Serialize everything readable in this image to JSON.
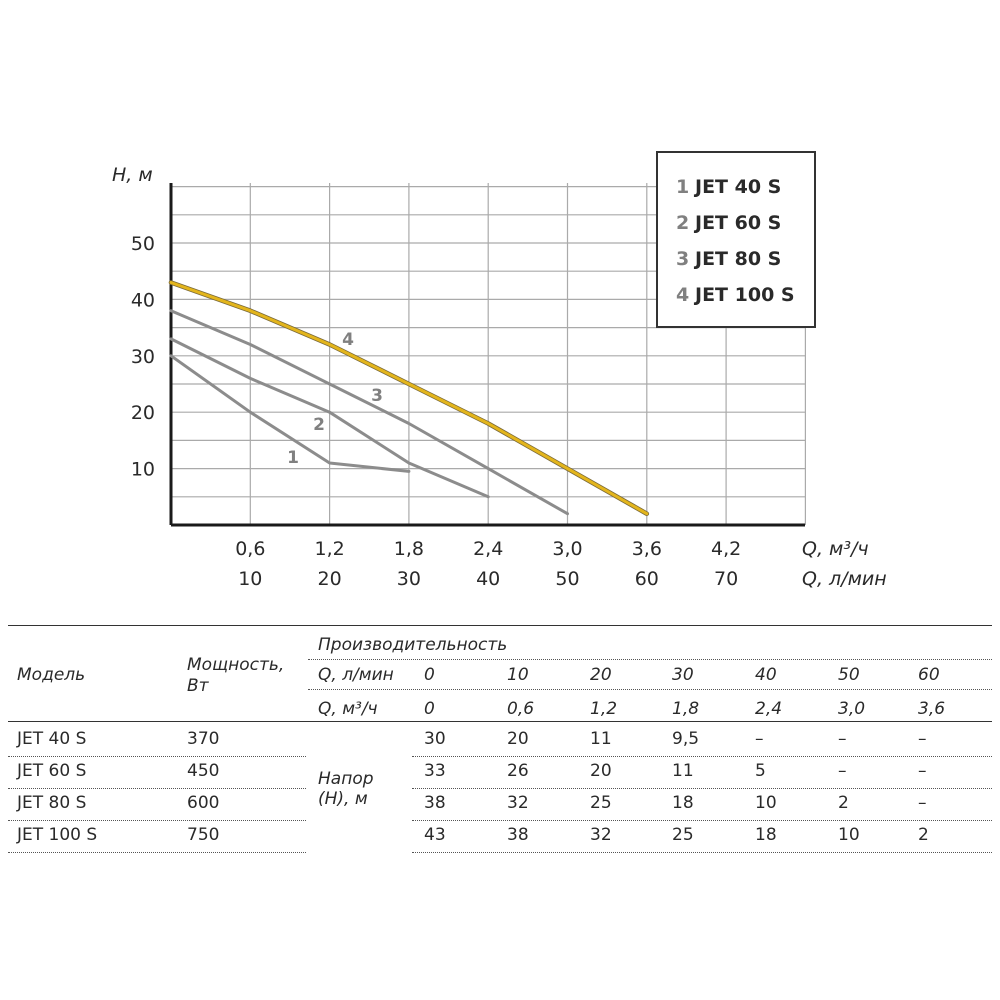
{
  "chart_data": {
    "type": "line",
    "xlabel": "Q, м³/ч",
    "xlabel_secondary": "Q, л/мин",
    "ylabel": "H, м",
    "xlim": [
      0,
      80
    ],
    "ylim": [
      0,
      60
    ],
    "x_ticks_m3h": [
      "0,6",
      "1,2",
      "1,8",
      "2,4",
      "3,0",
      "3,6",
      "4,2"
    ],
    "x_ticks_lmin": [
      "10",
      "20",
      "30",
      "40",
      "50",
      "60",
      "70"
    ],
    "x_tick_values": [
      10,
      20,
      30,
      40,
      50,
      60,
      70
    ],
    "y_ticks": [
      10,
      20,
      30,
      40,
      50
    ],
    "grid": true,
    "series": [
      {
        "label": "1",
        "name": "JET 40 S",
        "color": "#8c8c8c",
        "x": [
          0,
          10,
          20,
          30
        ],
        "y": [
          30,
          20,
          11,
          9.5
        ]
      },
      {
        "label": "2",
        "name": "JET 60 S",
        "color": "#8c8c8c",
        "x": [
          0,
          10,
          20,
          30,
          40
        ],
        "y": [
          33,
          26,
          20,
          11,
          5
        ]
      },
      {
        "label": "3",
        "name": "JET 80 S",
        "color": "#8c8c8c",
        "x": [
          0,
          10,
          20,
          30,
          40,
          50
        ],
        "y": [
          38,
          32,
          25,
          18,
          10,
          2
        ]
      },
      {
        "label": "4",
        "name": "JET 100 S",
        "color": "#e3b51c",
        "x": [
          0,
          10,
          20,
          30,
          40,
          50,
          60
        ],
        "y": [
          43,
          38,
          32,
          25,
          18,
          10,
          2
        ]
      }
    ],
    "legend_position": "top-right"
  },
  "table": {
    "col_model": "Модель",
    "col_power": "Мощность,",
    "col_power_unit": "Вт",
    "performance_header": "Производительность",
    "q_lmin_label": "Q, л/мин",
    "q_m3h_label": "Q, м³/ч",
    "q_lmin": [
      "0",
      "10",
      "20",
      "30",
      "40",
      "50",
      "60"
    ],
    "q_m3h": [
      "0",
      "0,6",
      "1,2",
      "1,8",
      "2,4",
      "3,0",
      "3,6"
    ],
    "head_label_1": "Напор",
    "head_label_2": "(Н), м",
    "rows": [
      {
        "model": "JET 40 S",
        "power": "370",
        "heads": [
          "30",
          "20",
          "11",
          "9,5",
          "–",
          "–",
          "–"
        ]
      },
      {
        "model": "JET 60 S",
        "power": "450",
        "heads": [
          "33",
          "26",
          "20",
          "11",
          "5",
          "–",
          "–"
        ]
      },
      {
        "model": "JET 80 S",
        "power": "600",
        "heads": [
          "38",
          "32",
          "25",
          "18",
          "10",
          "2",
          "–"
        ]
      },
      {
        "model": "JET 100 S",
        "power": "750",
        "heads": [
          "43",
          "38",
          "32",
          "25",
          "18",
          "10",
          "2"
        ]
      }
    ]
  }
}
